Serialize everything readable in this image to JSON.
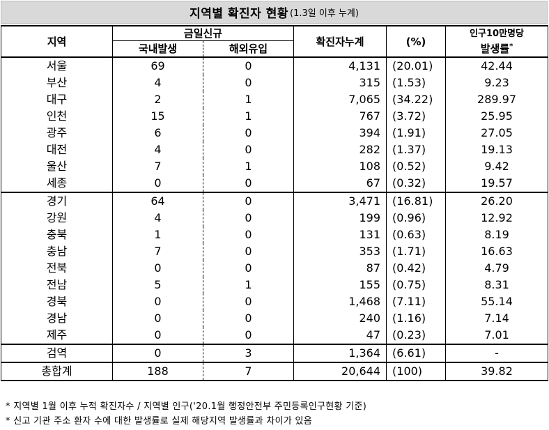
{
  "title": {
    "main": "지역별 확진자 현황",
    "sub": "(1.3일 이후 누계)"
  },
  "headers": {
    "region": "지역",
    "today_new": "금일신규",
    "domestic": "국내발생",
    "overseas": "해외유입",
    "cumulative": "확진자누계",
    "percent": "(%)",
    "rate_line1": "인구10만명당",
    "rate_line2": "발생률",
    "rate_mark": "*"
  },
  "rows": [
    {
      "region": "서울",
      "domestic": "69",
      "overseas": "0",
      "cumulative": "4,131",
      "percent": "(20.01)",
      "rate": "42.44"
    },
    {
      "region": "부산",
      "domestic": "4",
      "overseas": "0",
      "cumulative": "315",
      "percent": "(1.53)",
      "rate": "9.23"
    },
    {
      "region": "대구",
      "domestic": "2",
      "overseas": "1",
      "cumulative": "7,065",
      "percent": "(34.22)",
      "rate": "289.97"
    },
    {
      "region": "인천",
      "domestic": "15",
      "overseas": "1",
      "cumulative": "767",
      "percent": "(3.72)",
      "rate": "25.95"
    },
    {
      "region": "광주",
      "domestic": "6",
      "overseas": "0",
      "cumulative": "394",
      "percent": "(1.91)",
      "rate": "27.05"
    },
    {
      "region": "대전",
      "domestic": "4",
      "overseas": "0",
      "cumulative": "282",
      "percent": "(1.37)",
      "rate": "19.13"
    },
    {
      "region": "울산",
      "domestic": "7",
      "overseas": "1",
      "cumulative": "108",
      "percent": "(0.52)",
      "rate": "9.42"
    },
    {
      "region": "세종",
      "domestic": "0",
      "overseas": "0",
      "cumulative": "67",
      "percent": "(0.32)",
      "rate": "19.57"
    },
    {
      "region": "경기",
      "domestic": "64",
      "overseas": "0",
      "cumulative": "3,471",
      "percent": "(16.81)",
      "rate": "26.20"
    },
    {
      "region": "강원",
      "domestic": "4",
      "overseas": "0",
      "cumulative": "199",
      "percent": "(0.96)",
      "rate": "12.92"
    },
    {
      "region": "충북",
      "domestic": "1",
      "overseas": "0",
      "cumulative": "131",
      "percent": "(0.63)",
      "rate": "8.19"
    },
    {
      "region": "충남",
      "domestic": "7",
      "overseas": "0",
      "cumulative": "353",
      "percent": "(1.71)",
      "rate": "16.63"
    },
    {
      "region": "전북",
      "domestic": "0",
      "overseas": "0",
      "cumulative": "87",
      "percent": "(0.42)",
      "rate": "4.79"
    },
    {
      "region": "전남",
      "domestic": "5",
      "overseas": "1",
      "cumulative": "155",
      "percent": "(0.75)",
      "rate": "8.31"
    },
    {
      "region": "경북",
      "domestic": "0",
      "overseas": "0",
      "cumulative": "1,468",
      "percent": "(7.11)",
      "rate": "55.14"
    },
    {
      "region": "경남",
      "domestic": "0",
      "overseas": "0",
      "cumulative": "240",
      "percent": "(1.16)",
      "rate": "7.14"
    },
    {
      "region": "제주",
      "domestic": "0",
      "overseas": "0",
      "cumulative": "47",
      "percent": "(0.23)",
      "rate": "7.01"
    },
    {
      "region": "검역",
      "domestic": "0",
      "overseas": "3",
      "cumulative": "1,364",
      "percent": "(6.61)",
      "rate": "-"
    },
    {
      "region": "총합계",
      "domestic": "188",
      "overseas": "7",
      "cumulative": "20,644",
      "percent": "(100)",
      "rate": "39.82"
    }
  ],
  "footnotes": [
    "* 지역별 1월 이후 누적 확진자수 / 지역별 인구('20.1월 행정안전부 주민등록인구현황 기준)",
    "* 신고 기관 주소 환자 수에 대한 발생률로 실제 해당지역 발생률과 차이가 있음"
  ]
}
